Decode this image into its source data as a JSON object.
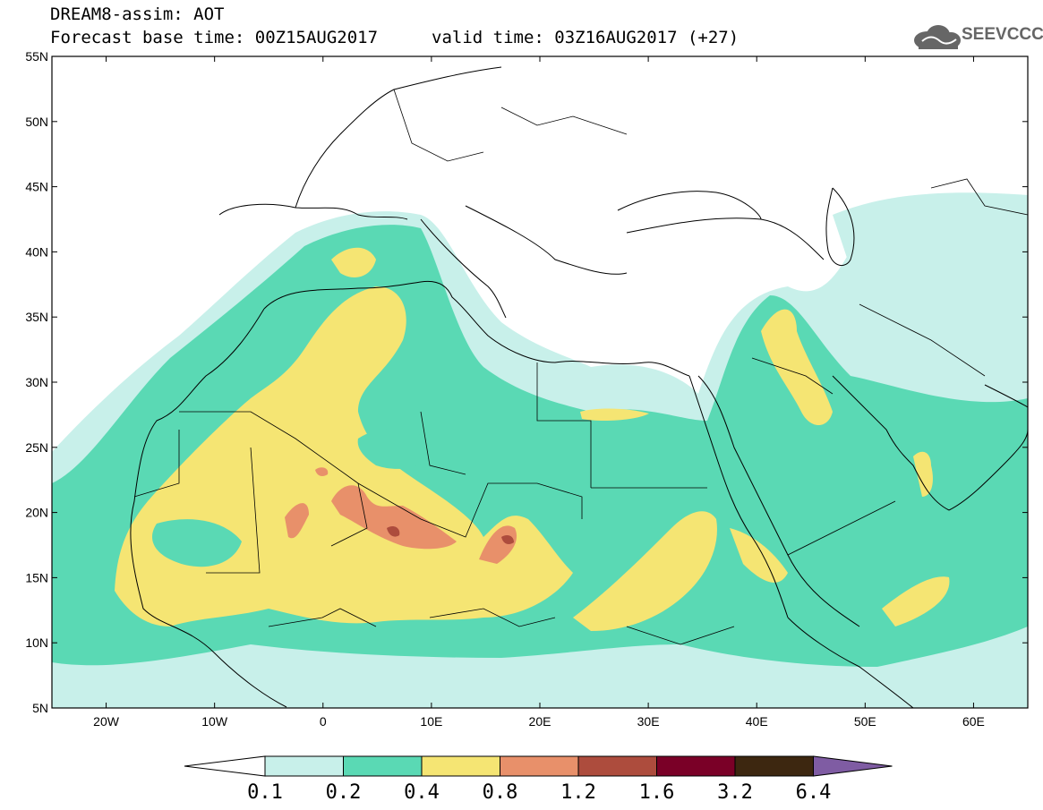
{
  "header": {
    "line1": "DREAM8-assim: AOT",
    "base_time": "Forecast base time: 00Z15AUG2017",
    "valid_time": "valid time: 03Z16AUG2017 (+27)",
    "logo_text": "SEEVCCC"
  },
  "map": {
    "lon_range": [
      -25,
      65
    ],
    "lat_range": [
      5,
      55
    ],
    "lat_labels": [
      "55N",
      "50N",
      "45N",
      "40N",
      "35N",
      "30N",
      "25N",
      "20N",
      "15N",
      "10N",
      "5N"
    ],
    "lat_values": [
      55,
      50,
      45,
      40,
      35,
      30,
      25,
      20,
      15,
      10,
      5
    ],
    "lon_labels": [
      "20W",
      "10W",
      "0",
      "10E",
      "20E",
      "30E",
      "40E",
      "50E",
      "60E"
    ],
    "lon_values": [
      -20,
      -10,
      0,
      10,
      20,
      30,
      40,
      50,
      60
    ]
  },
  "colorbar": {
    "levels": [
      "0.1",
      "0.2",
      "0.4",
      "0.8",
      "1.2",
      "1.6",
      "3.2",
      "6.4"
    ],
    "colors": [
      "#c8f0ea",
      "#5ad9b4",
      "#f5e573",
      "#e8906a",
      "#ad4c3d",
      "#7a0027",
      "#3d2710",
      "#7f5ca3"
    ],
    "under_color": "#ffffff"
  }
}
